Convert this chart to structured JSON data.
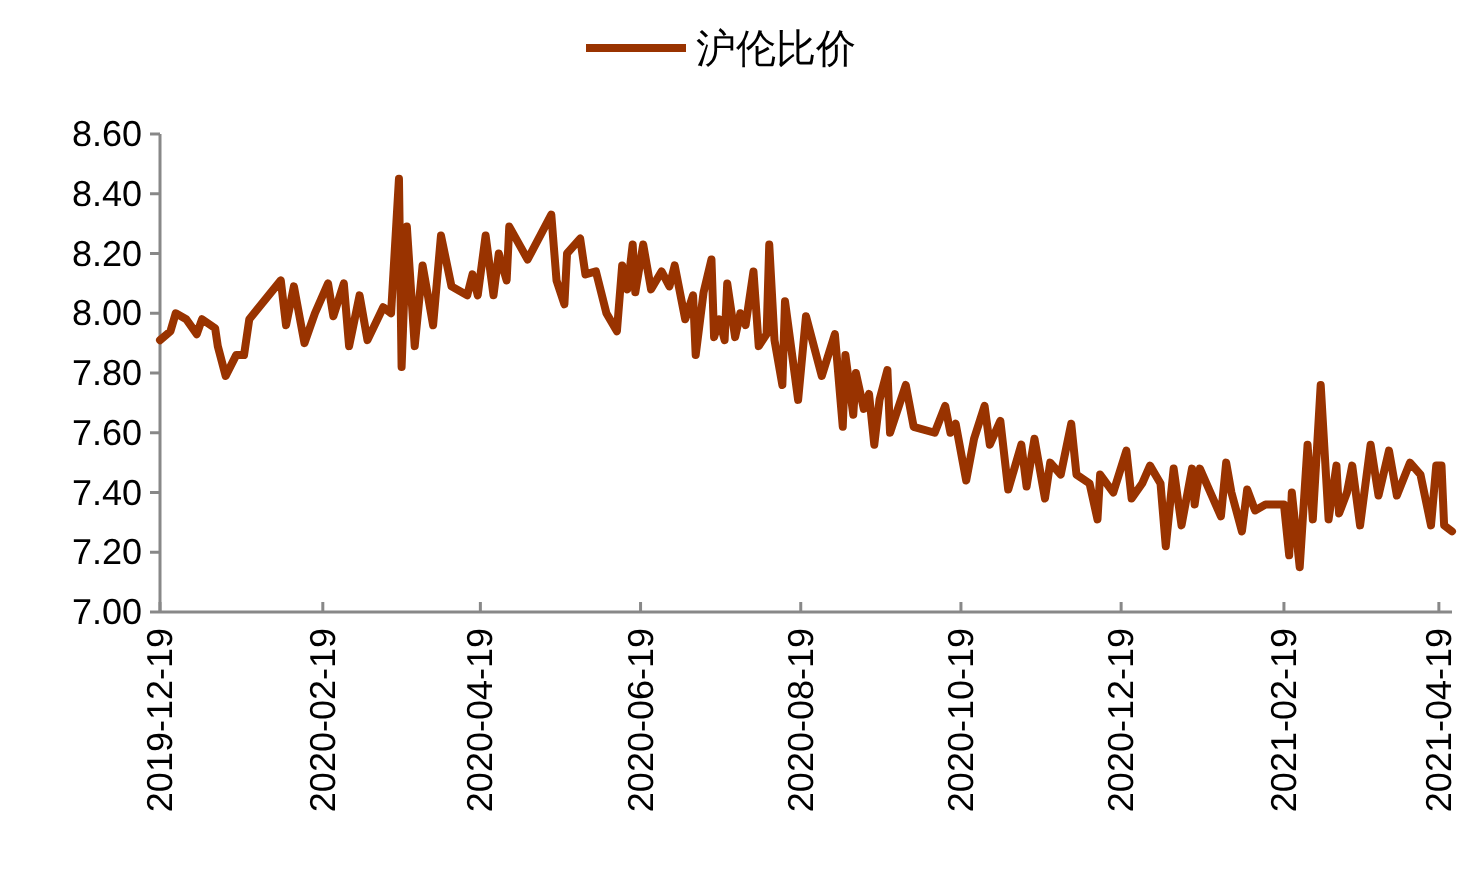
{
  "chart_data": {
    "type": "line",
    "legend": "top",
    "grid": false,
    "marker": "none",
    "line_style": "solid",
    "x": [
      "2019-12-19",
      "2019-12-23",
      "2019-12-25",
      "2019-12-29",
      "2020-01-02",
      "2020-01-04",
      "2020-01-09",
      "2020-01-10",
      "2020-01-13",
      "2020-01-17",
      "2020-01-20",
      "2020-01-22",
      "2020-02-03",
      "2020-02-05",
      "2020-02-08",
      "2020-02-12",
      "2020-02-16",
      "2020-02-21",
      "2020-02-23",
      "2020-02-27",
      "2020-02-29",
      "2020-03-04",
      "2020-03-07",
      "2020-03-13",
      "2020-03-16",
      "2020-03-19",
      "2020-03-20",
      "2020-03-22",
      "2020-03-25",
      "2020-03-28",
      "2020-04-01",
      "2020-04-04",
      "2020-04-08",
      "2020-04-14",
      "2020-04-16",
      "2020-04-18",
      "2020-04-21",
      "2020-04-24",
      "2020-04-26",
      "2020-04-29",
      "2020-04-30",
      "2020-05-07",
      "2020-05-16",
      "2020-05-18",
      "2020-05-21",
      "2020-05-22",
      "2020-05-27",
      "2020-05-29",
      "2020-06-02",
      "2020-06-06",
      "2020-06-10",
      "2020-06-12",
      "2020-06-14",
      "2020-06-16",
      "2020-06-17",
      "2020-06-20",
      "2020-06-23",
      "2020-06-27",
      "2020-06-30",
      "2020-07-02",
      "2020-07-06",
      "2020-07-09",
      "2020-07-10",
      "2020-07-13",
      "2020-07-16",
      "2020-07-17",
      "2020-07-19",
      "2020-07-21",
      "2020-07-22",
      "2020-07-25",
      "2020-07-27",
      "2020-07-29",
      "2020-08-01",
      "2020-08-03",
      "2020-08-06",
      "2020-08-07",
      "2020-08-09",
      "2020-08-12",
      "2020-08-13",
      "2020-08-18",
      "2020-08-21",
      "2020-08-27",
      "2020-09-01",
      "2020-09-04",
      "2020-09-05",
      "2020-09-08",
      "2020-09-09",
      "2020-09-12",
      "2020-09-14",
      "2020-09-16",
      "2020-09-18",
      "2020-09-21",
      "2020-09-22",
      "2020-09-28",
      "2020-10-01",
      "2020-10-09",
      "2020-10-13",
      "2020-10-15",
      "2020-10-17",
      "2020-10-21",
      "2020-10-24",
      "2020-10-28",
      "2020-10-30",
      "2020-11-03",
      "2020-11-06",
      "2020-11-11",
      "2020-11-13",
      "2020-11-16",
      "2020-11-20",
      "2020-11-22",
      "2020-11-26",
      "2020-11-30",
      "2020-12-02",
      "2020-12-07",
      "2020-12-10",
      "2020-12-11",
      "2020-12-16",
      "2020-12-21",
      "2020-12-23",
      "2020-12-27",
      "2020-12-30",
      "2021-01-03",
      "2021-01-05",
      "2021-01-08",
      "2021-01-11",
      "2021-01-15",
      "2021-01-16",
      "2021-01-18",
      "2021-01-22",
      "2021-01-26",
      "2021-01-28",
      "2021-01-30",
      "2021-02-03",
      "2021-02-05",
      "2021-02-08",
      "2021-02-12",
      "2021-02-19",
      "2021-02-21",
      "2021-02-22",
      "2021-02-25",
      "2021-02-28",
      "2021-03-02",
      "2021-03-05",
      "2021-03-08",
      "2021-03-11",
      "2021-03-12",
      "2021-03-15",
      "2021-03-17",
      "2021-03-20",
      "2021-03-24",
      "2021-03-27",
      "2021-03-31",
      "2021-04-03",
      "2021-04-08",
      "2021-04-12",
      "2021-04-16",
      "2021-04-18",
      "2021-04-20",
      "2021-04-21",
      "2021-04-24"
    ],
    "series": [
      {
        "name": "沪伦比价",
        "color": "#993300",
        "values": [
          7.91,
          7.94,
          8.0,
          7.98,
          7.93,
          7.98,
          7.95,
          7.89,
          7.79,
          7.86,
          7.86,
          7.98,
          8.11,
          7.96,
          8.09,
          7.9,
          8.0,
          8.1,
          7.99,
          8.1,
          7.89,
          8.06,
          7.91,
          8.02,
          8.0,
          8.45,
          7.82,
          8.29,
          7.89,
          8.16,
          7.96,
          8.26,
          8.09,
          8.06,
          8.13,
          8.06,
          8.26,
          8.06,
          8.2,
          8.11,
          8.29,
          8.18,
          8.33,
          8.11,
          8.03,
          8.2,
          8.25,
          8.13,
          8.14,
          8.0,
          7.94,
          8.16,
          8.08,
          8.23,
          8.07,
          8.23,
          8.08,
          8.14,
          8.09,
          8.16,
          7.98,
          8.06,
          7.86,
          8.07,
          8.18,
          7.92,
          7.98,
          7.91,
          8.1,
          7.92,
          8.0,
          7.96,
          8.14,
          7.89,
          7.93,
          8.23,
          7.91,
          7.76,
          8.04,
          7.71,
          7.99,
          7.79,
          7.93,
          7.62,
          7.86,
          7.66,
          7.8,
          7.68,
          7.73,
          7.56,
          7.71,
          7.81,
          7.6,
          7.76,
          7.62,
          7.6,
          7.69,
          7.6,
          7.63,
          7.44,
          7.58,
          7.69,
          7.56,
          7.64,
          7.41,
          7.56,
          7.42,
          7.58,
          7.38,
          7.5,
          7.46,
          7.63,
          7.46,
          7.43,
          7.31,
          7.46,
          7.4,
          7.54,
          7.38,
          7.43,
          7.49,
          7.43,
          7.22,
          7.48,
          7.29,
          7.48,
          7.36,
          7.48,
          7.4,
          7.32,
          7.5,
          7.4,
          7.27,
          7.41,
          7.34,
          7.36,
          7.36,
          7.19,
          7.4,
          7.15,
          7.56,
          7.31,
          7.76,
          7.31,
          7.49,
          7.33,
          7.4,
          7.49,
          7.29,
          7.56,
          7.39,
          7.54,
          7.39,
          7.5,
          7.46,
          7.29,
          7.49,
          7.49,
          7.29,
          7.27
        ]
      }
    ],
    "xlim": [
      "2019-12-19",
      "2021-04-24"
    ],
    "xticks": [
      "2019-12-19",
      "2020-02-19",
      "2020-04-19",
      "2020-06-19",
      "2020-08-19",
      "2020-10-19",
      "2020-12-19",
      "2021-02-19",
      "2021-04-19"
    ],
    "ylim": [
      7.0,
      8.6
    ],
    "yticks": [
      {
        "value": 7.0,
        "label": "7.00"
      },
      {
        "value": 7.2,
        "label": "7.20"
      },
      {
        "value": 7.4,
        "label": "7.40"
      },
      {
        "value": 7.6,
        "label": "7.60"
      },
      {
        "value": 7.8,
        "label": "7.80"
      },
      {
        "value": 8.0,
        "label": "8.00"
      },
      {
        "value": 8.2,
        "label": "8.20"
      },
      {
        "value": 8.4,
        "label": "8.40"
      },
      {
        "value": 8.6,
        "label": "8.60"
      }
    ]
  }
}
